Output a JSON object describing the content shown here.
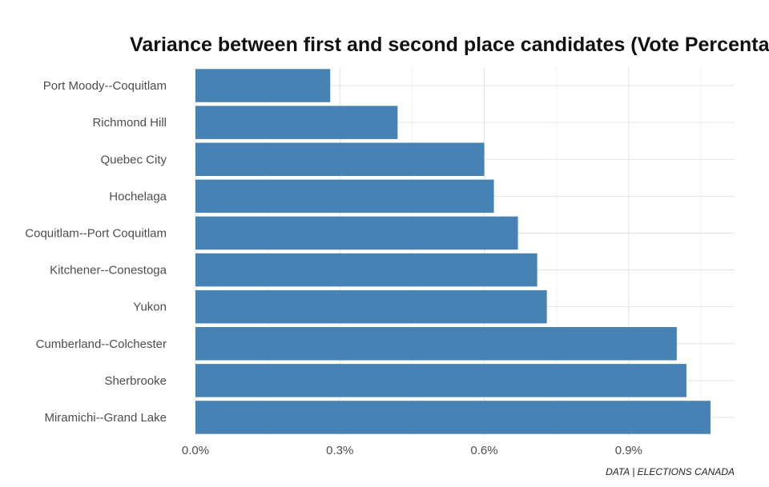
{
  "chart_data": {
    "type": "bar",
    "orientation": "horizontal",
    "title": "Variance between first and second place candidates (Vote Percentage)",
    "caption": "DATA | ELECTIONS CANADA",
    "xlabel": "",
    "ylabel": "",
    "xlim": [
      0,
      1.12
    ],
    "x_ticks": [
      0,
      0.3,
      0.6,
      0.9
    ],
    "x_tick_labels": [
      "0.0%",
      "0.3%",
      "0.6%",
      "0.9%"
    ],
    "grid": true,
    "bar_color": "#4682b4",
    "categories": [
      "Port Moody--Coquitlam",
      "Richmond Hill",
      "Quebec City",
      "Hochelaga",
      "Coquitlam--Port Coquitlam",
      "Kitchener--Conestoga",
      "Yukon",
      "Cumberland--Colchester",
      "Sherbrooke",
      "Miramichi--Grand Lake"
    ],
    "values": [
      0.28,
      0.42,
      0.6,
      0.62,
      0.67,
      0.71,
      0.73,
      1.0,
      1.02,
      1.07
    ]
  }
}
